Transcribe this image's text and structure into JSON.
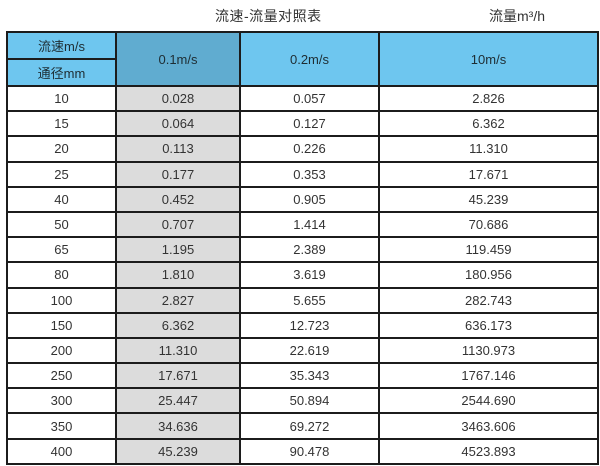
{
  "page": {
    "title_left": "流速-流量对照表",
    "title_right": "流量m³/h"
  },
  "table": {
    "corner_top": "流速m/s",
    "corner_bottom": "通径mm",
    "velocity_columns": [
      "0.1m/s",
      "0.2m/s",
      "10m/s"
    ],
    "rows": [
      {
        "diameter": "10",
        "values": [
          "0.028",
          "0.057",
          "2.826"
        ]
      },
      {
        "diameter": "15",
        "values": [
          "0.064",
          "0.127",
          "6.362"
        ]
      },
      {
        "diameter": "20",
        "values": [
          "0.113",
          "0.226",
          "11.310"
        ]
      },
      {
        "diameter": "25",
        "values": [
          "0.177",
          "0.353",
          "17.671"
        ]
      },
      {
        "diameter": "40",
        "values": [
          "0.452",
          "0.905",
          "45.239"
        ]
      },
      {
        "diameter": "50",
        "values": [
          "0.707",
          "1.414",
          "70.686"
        ]
      },
      {
        "diameter": "65",
        "values": [
          "1.195",
          "2.389",
          "119.459"
        ]
      },
      {
        "diameter": "80",
        "values": [
          "1.810",
          "3.619",
          "180.956"
        ]
      },
      {
        "diameter": "100",
        "values": [
          "2.827",
          "5.655",
          "282.743"
        ]
      },
      {
        "diameter": "150",
        "values": [
          "6.362",
          "12.723",
          "636.173"
        ]
      },
      {
        "diameter": "200",
        "values": [
          "11.310",
          "22.619",
          "1130.973"
        ]
      },
      {
        "diameter": "250",
        "values": [
          "17.671",
          "35.343",
          "1767.146"
        ]
      },
      {
        "diameter": "300",
        "values": [
          "25.447",
          "50.894",
          "2544.690"
        ]
      },
      {
        "diameter": "350",
        "values": [
          "34.636",
          "69.272",
          "3463.606"
        ]
      },
      {
        "diameter": "400",
        "values": [
          "45.239",
          "90.478",
          "4523.893"
        ]
      }
    ]
  },
  "colors": {
    "header_blue": "#6ec6ef",
    "header_dark_blue": "#60acd0",
    "highlight_gray": "#dcdcdc",
    "border": "#1c1c1c"
  },
  "chart_data": {
    "type": "table",
    "title": "流速-流量对照表",
    "unit_note": "流量m³/h",
    "columns": [
      "通径mm",
      "0.1m/s",
      "0.2m/s",
      "10m/s"
    ],
    "rows": [
      [
        10,
        0.028,
        0.057,
        2.826
      ],
      [
        15,
        0.064,
        0.127,
        6.362
      ],
      [
        20,
        0.113,
        0.226,
        11.31
      ],
      [
        25,
        0.177,
        0.353,
        17.671
      ],
      [
        40,
        0.452,
        0.905,
        45.239
      ],
      [
        50,
        0.707,
        1.414,
        70.686
      ],
      [
        65,
        1.195,
        2.389,
        119.459
      ],
      [
        80,
        1.81,
        3.619,
        180.956
      ],
      [
        100,
        2.827,
        5.655,
        282.743
      ],
      [
        150,
        6.362,
        12.723,
        636.173
      ],
      [
        200,
        11.31,
        22.619,
        1130.973
      ],
      [
        250,
        17.671,
        35.343,
        1767.146
      ],
      [
        300,
        25.447,
        50.894,
        2544.69
      ],
      [
        350,
        34.636,
        69.272,
        3463.606
      ],
      [
        400,
        45.239,
        90.478,
        4523.893
      ]
    ]
  }
}
